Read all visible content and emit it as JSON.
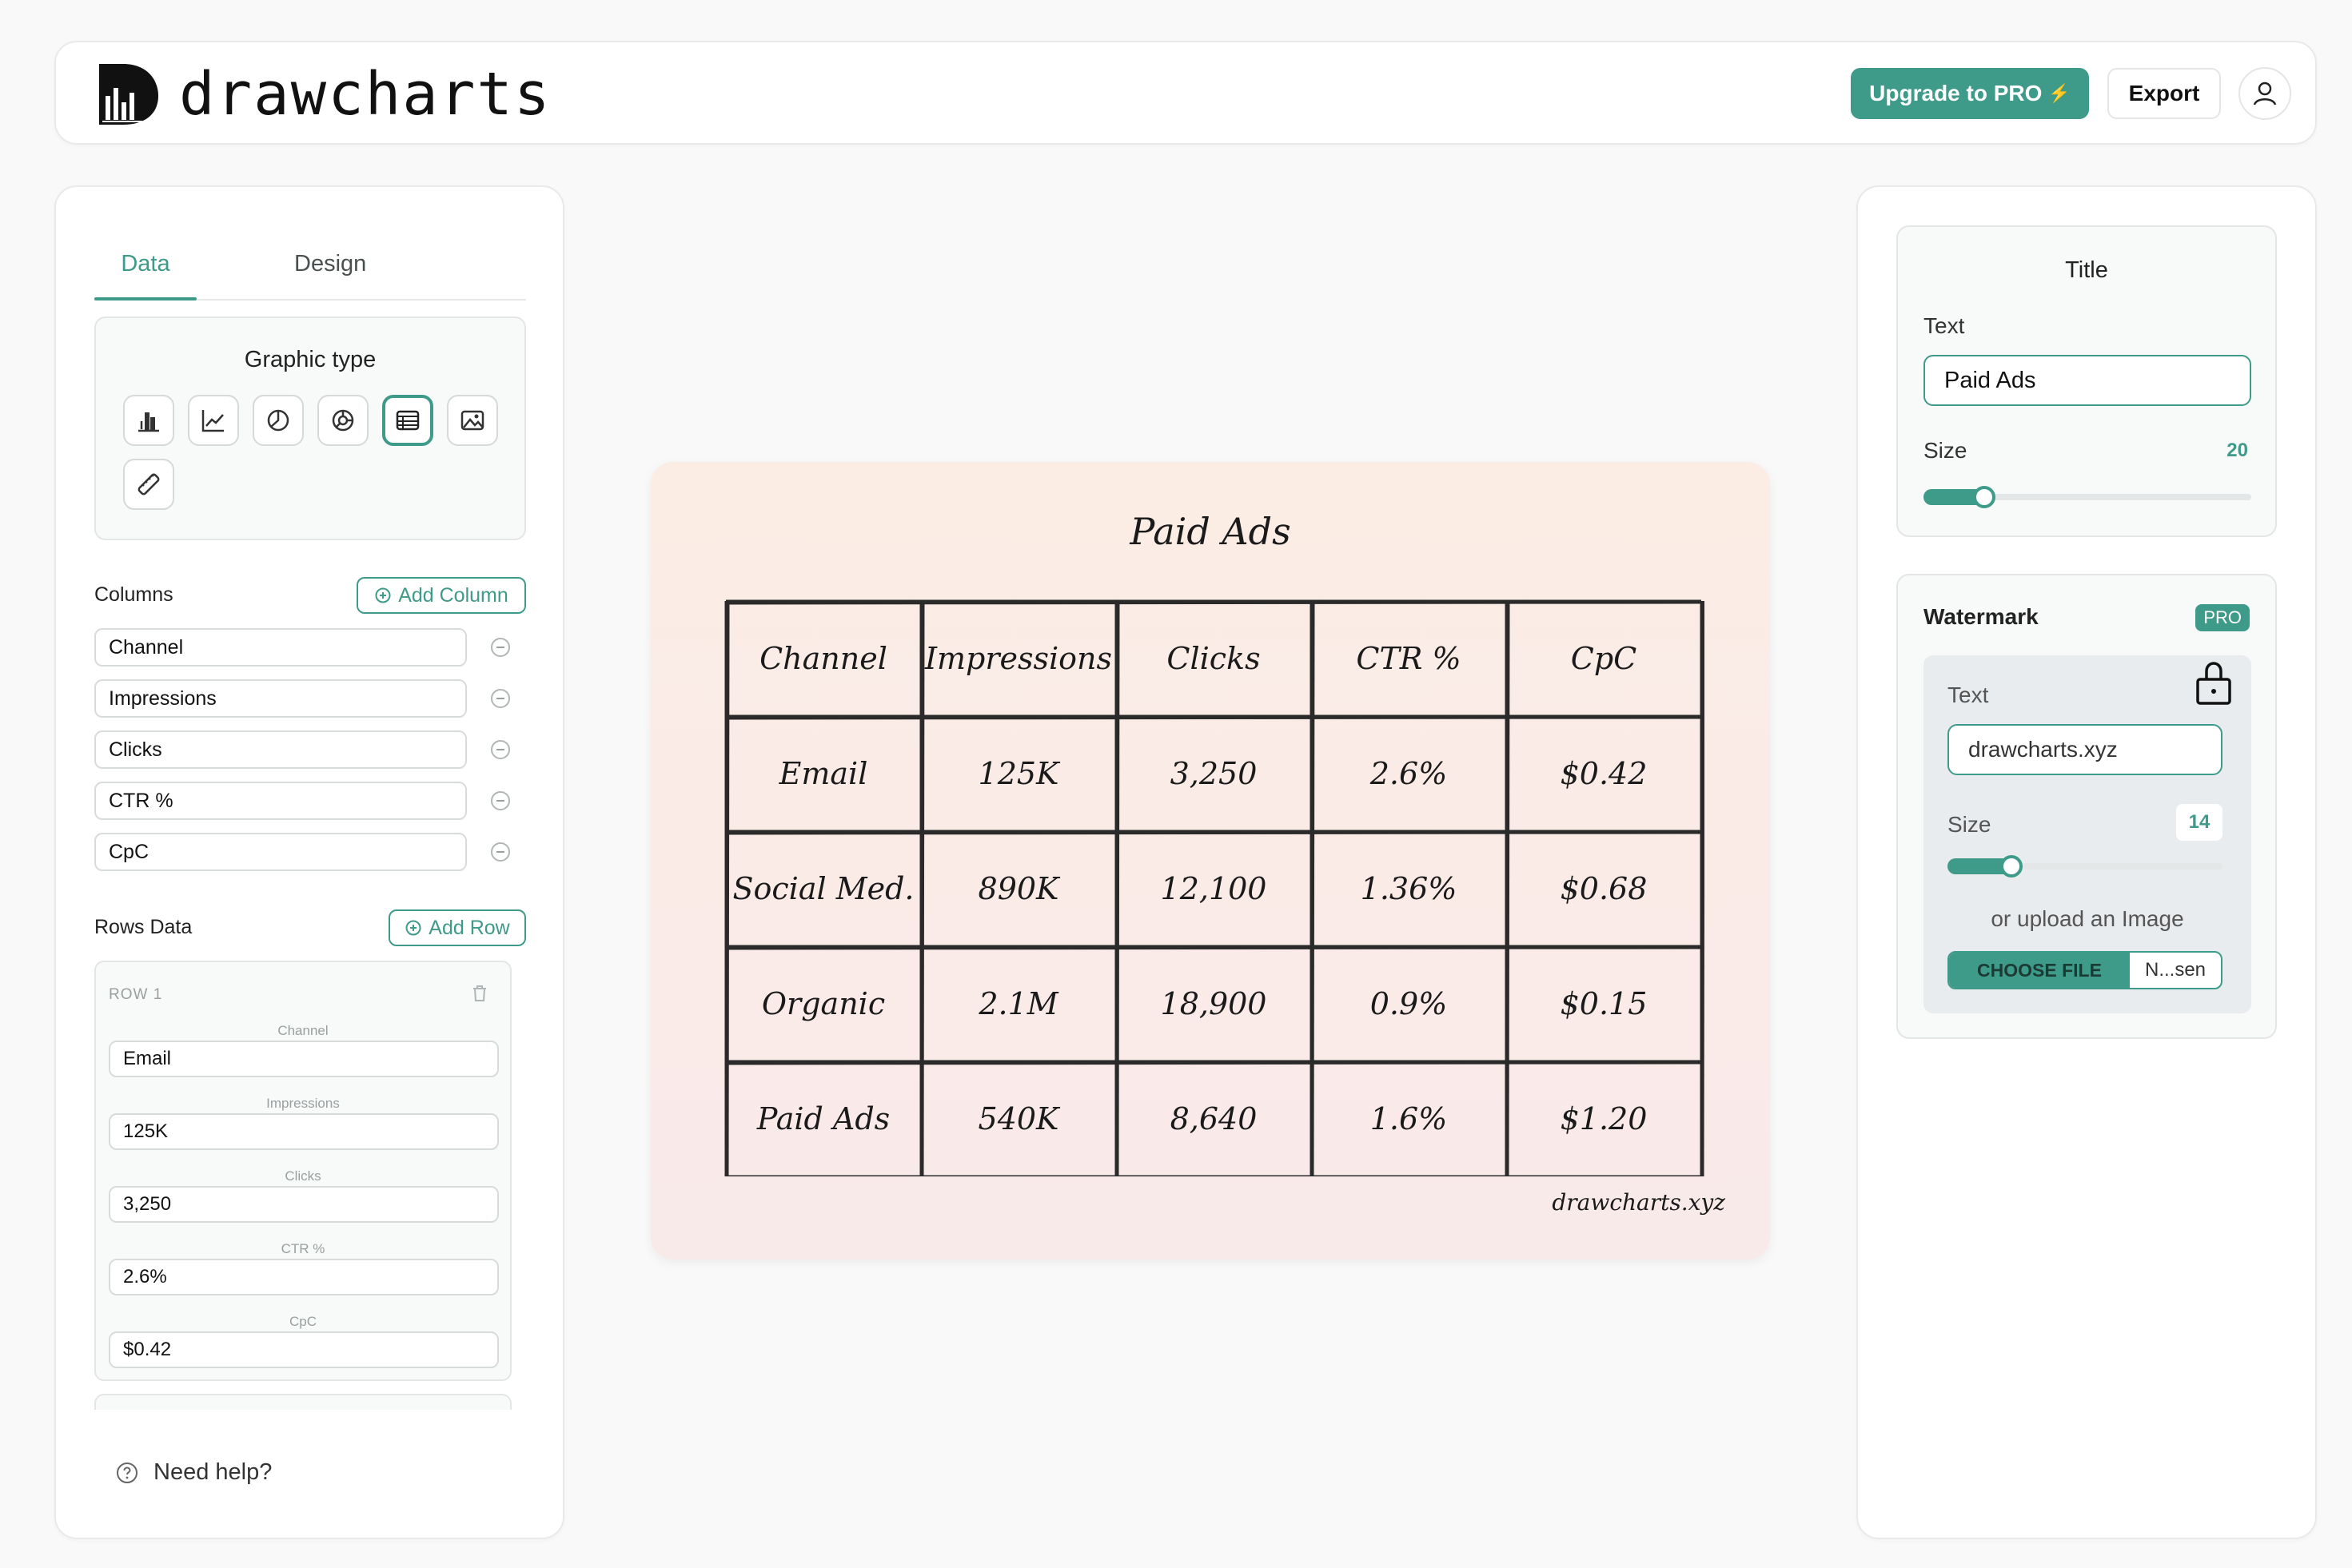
{
  "app": {
    "name": "drawcharts",
    "upgrade_label": "Upgrade to PRO",
    "upgrade_icon": "⚡",
    "export_label": "Export"
  },
  "left_panel": {
    "tabs": [
      {
        "label": "Data",
        "active": true
      },
      {
        "label": "Design",
        "active": false
      }
    ],
    "graphic_type": {
      "title": "Graphic type",
      "options": [
        "bar-chart-icon",
        "line-chart-icon",
        "pie-chart-icon",
        "donut-chart-icon",
        "table-icon",
        "image-icon",
        "ruler-icon"
      ],
      "selected": "table-icon"
    },
    "columns_label": "Columns",
    "add_column_label": "Add Column",
    "columns": [
      "Channel",
      "Impressions",
      "Clicks",
      "CTR %",
      "CpC"
    ],
    "rows_label": "Rows Data",
    "add_row_label": "Add Row",
    "row1": {
      "title": "ROW 1",
      "fields": [
        {
          "label": "Channel",
          "value": "Email"
        },
        {
          "label": "Impressions",
          "value": "125K"
        },
        {
          "label": "Clicks",
          "value": "3,250"
        },
        {
          "label": "CTR %",
          "value": "2.6%"
        },
        {
          "label": "CpC",
          "value": "$0.42"
        }
      ]
    },
    "help_label": "Need help?"
  },
  "chart_data": {
    "type": "table",
    "title": "Paid Ads",
    "columns": [
      "Channel",
      "Impressions",
      "Clicks",
      "CTR %",
      "CpC"
    ],
    "rows": [
      [
        "Email",
        "125K",
        "3,250",
        "2.6%",
        "$0.42"
      ],
      [
        "Social Med.",
        "890K",
        "12,100",
        "1.36%",
        "$0.68"
      ],
      [
        "Organic",
        "2.1M",
        "18,900",
        "0.9%",
        "$0.15"
      ],
      [
        "Paid Ads",
        "540K",
        "8,640",
        "1.6%",
        "$1.20"
      ]
    ],
    "watermark": "drawcharts.xyz"
  },
  "right_panel": {
    "title_section": {
      "heading": "Title",
      "text_label": "Text",
      "text_value": "Paid Ads",
      "size_label": "Size",
      "size_value": "20"
    },
    "watermark_section": {
      "heading": "Watermark",
      "badge": "PRO",
      "text_label": "Text",
      "text_value": "drawcharts.xyz",
      "size_label": "Size",
      "size_value": "14",
      "upload_label": "or upload an Image",
      "choose_file_label": "CHOOSE FILE",
      "file_name": "N...sen"
    }
  },
  "colors": {
    "accent": "#3e9a89",
    "chart_bg": "#fbece4"
  }
}
